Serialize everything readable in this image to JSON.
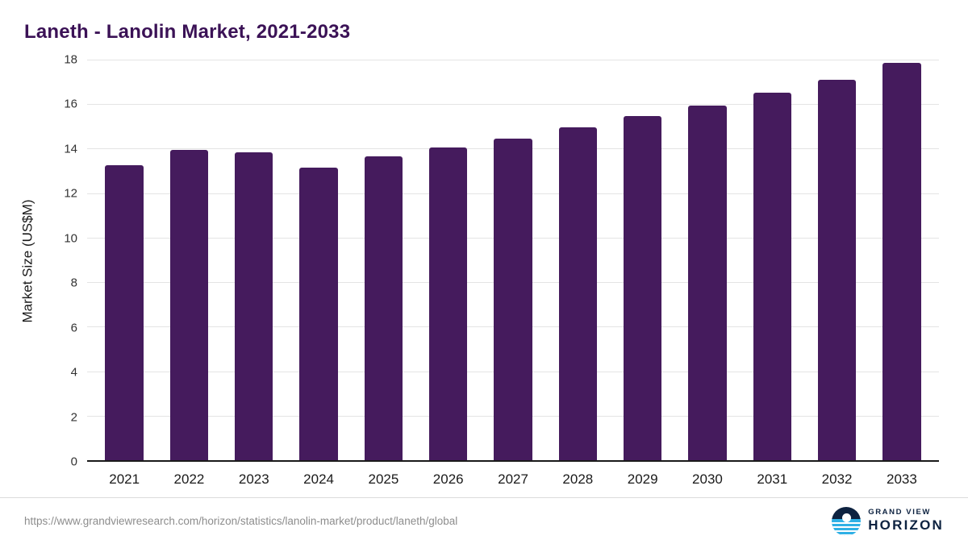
{
  "title": "Laneth - Lanolin Market, 2021-2033",
  "chart_data": {
    "type": "bar",
    "title": "Laneth - Lanolin Market, 2021-2033",
    "categories": [
      "2021",
      "2022",
      "2023",
      "2024",
      "2025",
      "2026",
      "2027",
      "2028",
      "2029",
      "2030",
      "2031",
      "2032",
      "2033"
    ],
    "values": [
      13.25,
      13.95,
      13.85,
      13.15,
      13.65,
      14.05,
      14.45,
      14.95,
      15.45,
      15.95,
      16.5,
      17.1,
      17.85
    ],
    "xlabel": "",
    "ylabel": "Market Size (US$M)",
    "ylim": [
      0,
      18
    ],
    "ytick_step": 2,
    "grid": true,
    "legend_position": "none",
    "bar_color": "#451b5d"
  },
  "footer": {
    "source_url": "https://www.grandviewresearch.com/horizon/statistics/lanolin-market/product/laneth/global",
    "logo_top": "GRAND VIEW",
    "logo_bottom": "HORIZON"
  },
  "colors": {
    "title": "#3b1256",
    "bar": "#451b5d",
    "gridline": "#e4e4e4",
    "axis": "#1a1a1a",
    "source_text": "#8d8d8d",
    "logo_blue": "#2fb0e5",
    "logo_navy": "#0d2240"
  }
}
